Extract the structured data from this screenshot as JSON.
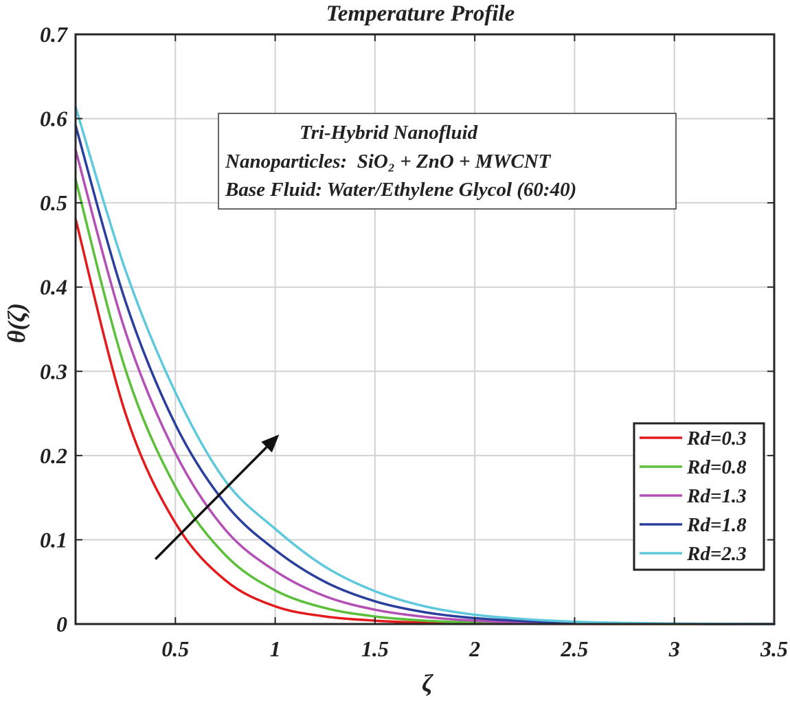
{
  "chart_data": {
    "type": "line",
    "title": "Temperature Profile",
    "xlabel": "ζ",
    "ylabel": "θ(ζ)",
    "xlim": [
      0,
      3.5
    ],
    "ylim": [
      0,
      0.7
    ],
    "xticks": [
      0.5,
      1,
      1.5,
      2,
      2.5,
      3,
      3.5
    ],
    "xtick_labels": [
      "0.5",
      "1",
      "1.5",
      "2",
      "2.5",
      "3",
      "3.5"
    ],
    "yticks": [
      0,
      0.1,
      0.2,
      0.3,
      0.4,
      0.5,
      0.6,
      0.7
    ],
    "ytick_labels": [
      "0",
      "0.1",
      "0.2",
      "0.3",
      "0.4",
      "0.5",
      "0.6",
      "0.7"
    ],
    "grid": true,
    "legend_position": "lower-right",
    "annotation": {
      "lines": [
        "Tri-Hybrid Nanofluid",
        "Nanoparticles:  SiO₂ + ZnO + MWCNT",
        "Base Fluid: Water/Ethylene Glycol (60:40)"
      ]
    },
    "arrow": {
      "from": [
        0.4,
        0.077
      ],
      "to": [
        1.02,
        0.225
      ],
      "meaning": "increasing Rd"
    },
    "x": [
      0,
      0.25,
      0.5,
      0.75,
      1,
      1.25,
      1.5,
      1.75,
      2,
      2.25,
      2.5,
      2.75,
      3,
      3.25,
      3.5
    ],
    "series": [
      {
        "name": "Rd=0.3",
        "color": "#e3191c",
        "values": [
          0.481,
          0.25,
          0.12,
          0.052,
          0.021,
          0.009,
          0.004,
          0.0015,
          0.0006,
          0.0002,
          0.0001,
          0,
          0,
          0,
          0
        ]
      },
      {
        "name": "Rd=0.8",
        "color": "#5cbf3a",
        "values": [
          0.528,
          0.302,
          0.163,
          0.082,
          0.04,
          0.019,
          0.009,
          0.004,
          0.0018,
          0.0008,
          0.0003,
          0.0001,
          0,
          0,
          0
        ]
      },
      {
        "name": "Rd=1.3",
        "color": "#b44fb5",
        "values": [
          0.563,
          0.347,
          0.203,
          0.112,
          0.063,
          0.033,
          0.017,
          0.0085,
          0.004,
          0.0019,
          0.0009,
          0.0004,
          0.0002,
          0,
          0
        ]
      },
      {
        "name": "Rd=1.8",
        "color": "#2a3f9d",
        "values": [
          0.592,
          0.383,
          0.237,
          0.143,
          0.088,
          0.05,
          0.027,
          0.014,
          0.007,
          0.0035,
          0.0017,
          0.0008,
          0.0003,
          0.0001,
          0
        ]
      },
      {
        "name": "Rd=2.3",
        "color": "#5ec8dd",
        "values": [
          0.614,
          0.42,
          0.275,
          0.17,
          0.113,
          0.068,
          0.039,
          0.021,
          0.011,
          0.0058,
          0.0028,
          0.0013,
          0.0005,
          0.0002,
          0
        ]
      }
    ]
  }
}
